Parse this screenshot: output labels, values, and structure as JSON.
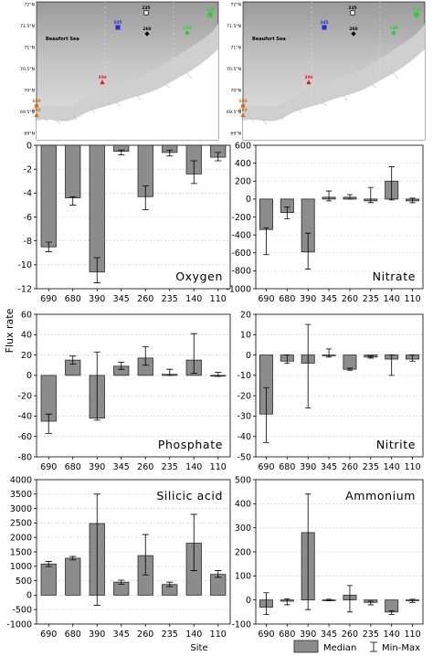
{
  "figure": {
    "y_axis_title": "Flux rate",
    "x_axis_title": "Site",
    "legend": {
      "median": "Median",
      "minmax": "Min-Max"
    }
  },
  "maps": [
    {
      "sea_label": "Beaufort Sea",
      "lat_labels": [
        "72°N",
        "71.5°N",
        "71°N",
        "70.5°N",
        "70°N",
        "69.5°N",
        "69°N"
      ],
      "lon_labels": [
        "135°W",
        "130°W"
      ],
      "sites": [
        {
          "id": "235",
          "color": "#000000",
          "shape": "square-open"
        },
        {
          "id": "345",
          "color": "#2b2bd8",
          "shape": "square-open"
        },
        {
          "id": "260",
          "color": "#000000",
          "shape": "diamond"
        },
        {
          "id": "140",
          "color": "#2fcc2f",
          "shape": "diamond"
        },
        {
          "id": "110",
          "color": "#2fcc2f",
          "shape": "square-open"
        },
        {
          "id": "390",
          "color": "#e21f1f",
          "shape": "triangle"
        },
        {
          "id": "680",
          "color": "#c8732a",
          "shape": "circle"
        },
        {
          "id": "690",
          "color": "#c8732a",
          "shape": "triangle"
        }
      ]
    },
    {
      "sea_label": "Beaufort Sea",
      "lat_labels": [
        "72°N",
        "71.5°N",
        "71°N",
        "70.5°N",
        "70°N",
        "69.5°N",
        "69°N"
      ],
      "lon_labels": [
        "135°W",
        "130°W"
      ],
      "sites": [
        {
          "id": "235",
          "color": "#000000",
          "shape": "square-open"
        },
        {
          "id": "345",
          "color": "#2b2bd8",
          "shape": "square-open"
        },
        {
          "id": "260",
          "color": "#000000",
          "shape": "diamond"
        },
        {
          "id": "140",
          "color": "#2fcc2f",
          "shape": "diamond"
        },
        {
          "id": "110",
          "color": "#2fcc2f",
          "shape": "square-open"
        },
        {
          "id": "390",
          "color": "#e21f1f",
          "shape": "triangle"
        },
        {
          "id": "680",
          "color": "#c8732a",
          "shape": "circle"
        },
        {
          "id": "690",
          "color": "#c8732a",
          "shape": "triangle"
        }
      ]
    }
  ],
  "chart_data": [
    {
      "type": "bar",
      "title": "Oxygen",
      "categories": [
        "690",
        "680",
        "390",
        "345",
        "260",
        "235",
        "140",
        "110"
      ],
      "median": [
        -8.5,
        -4.4,
        -10.6,
        -0.5,
        -4.3,
        -0.6,
        -2.4,
        -1.0
      ],
      "min": [
        -8.9,
        -5.0,
        -11.5,
        -0.8,
        -5.4,
        -0.9,
        -3.2,
        -1.3
      ],
      "max": [
        -8.1,
        -4.3,
        -9.4,
        -0.4,
        -3.4,
        -0.4,
        -1.3,
        -0.6
      ],
      "ylim": [
        -12,
        0
      ],
      "yticks": [
        -12,
        -10,
        -8,
        -6,
        -4,
        -2,
        0
      ],
      "title_pos": "bottom-right"
    },
    {
      "type": "bar",
      "title": "Nitrate",
      "categories": [
        "690",
        "680",
        "390",
        "345",
        "260",
        "235",
        "140",
        "110"
      ],
      "median": [
        -340,
        -150,
        -590,
        20,
        20,
        -20,
        200,
        -20
      ],
      "min": [
        -620,
        -220,
        -780,
        -20,
        0,
        -40,
        -10,
        -40
      ],
      "max": [
        -320,
        -90,
        -380,
        90,
        50,
        130,
        360,
        10
      ],
      "ylim": [
        -1000,
        600
      ],
      "yticks": [
        -1000,
        -800,
        -600,
        -400,
        -200,
        0,
        200,
        400,
        600
      ],
      "title_pos": "bottom-right"
    },
    {
      "type": "bar",
      "title": "Phosphate",
      "categories": [
        "690",
        "680",
        "390",
        "345",
        "260",
        "235",
        "140",
        "110"
      ],
      "median": [
        -45,
        15,
        -42,
        9,
        17,
        1,
        15,
        0
      ],
      "min": [
        -57,
        11,
        -44,
        6,
        10,
        0,
        2,
        -1
      ],
      "max": [
        -38,
        19,
        23,
        13,
        28,
        6,
        41,
        3
      ],
      "ylim": [
        -80,
        60
      ],
      "yticks": [
        -80,
        -60,
        -40,
        -20,
        0,
        20,
        40,
        60
      ],
      "title_pos": "bottom-right"
    },
    {
      "type": "bar",
      "title": "Nitrite",
      "categories": [
        "690",
        "680",
        "390",
        "345",
        "260",
        "235",
        "140",
        "110"
      ],
      "median": [
        -29,
        -3,
        -4,
        0,
        -7,
        -1,
        -2,
        -2
      ],
      "min": [
        -43,
        -4,
        -26,
        -1,
        -7.5,
        -1.5,
        -10,
        -3
      ],
      "max": [
        -16,
        0,
        15,
        3,
        -6.5,
        -0.5,
        0,
        0
      ],
      "ylim": [
        -50,
        20
      ],
      "yticks": [
        -50,
        -40,
        -30,
        -20,
        -10,
        0,
        10,
        20
      ],
      "title_pos": "bottom-right"
    },
    {
      "type": "bar",
      "title": "Silicic acid",
      "categories": [
        "690",
        "680",
        "390",
        "345",
        "260",
        "235",
        "140",
        "110"
      ],
      "median": [
        1080,
        1280,
        2480,
        450,
        1370,
        370,
        1800,
        720
      ],
      "min": [
        990,
        1220,
        -350,
        380,
        700,
        300,
        850,
        620
      ],
      "max": [
        1170,
        1340,
        3500,
        520,
        2100,
        450,
        2800,
        850
      ],
      "ylim": [
        -1000,
        4000
      ],
      "yticks": [
        -1000,
        -500,
        0,
        500,
        1000,
        1500,
        2000,
        2500,
        3000,
        3500,
        4000
      ],
      "title_pos": "top-right"
    },
    {
      "type": "bar",
      "title": "Ammonium",
      "categories": [
        "690",
        "680",
        "390",
        "345",
        "260",
        "235",
        "140",
        "110"
      ],
      "median": [
        -30,
        -5,
        280,
        0,
        20,
        -10,
        -50,
        -3
      ],
      "min": [
        -60,
        -20,
        -40,
        -3,
        -50,
        -20,
        -60,
        -10
      ],
      "max": [
        30,
        5,
        440,
        3,
        60,
        -5,
        -45,
        3
      ],
      "ylim": [
        -100,
        500
      ],
      "yticks": [
        -100,
        0,
        100,
        200,
        300,
        400,
        500
      ],
      "title_pos": "top-right"
    }
  ]
}
